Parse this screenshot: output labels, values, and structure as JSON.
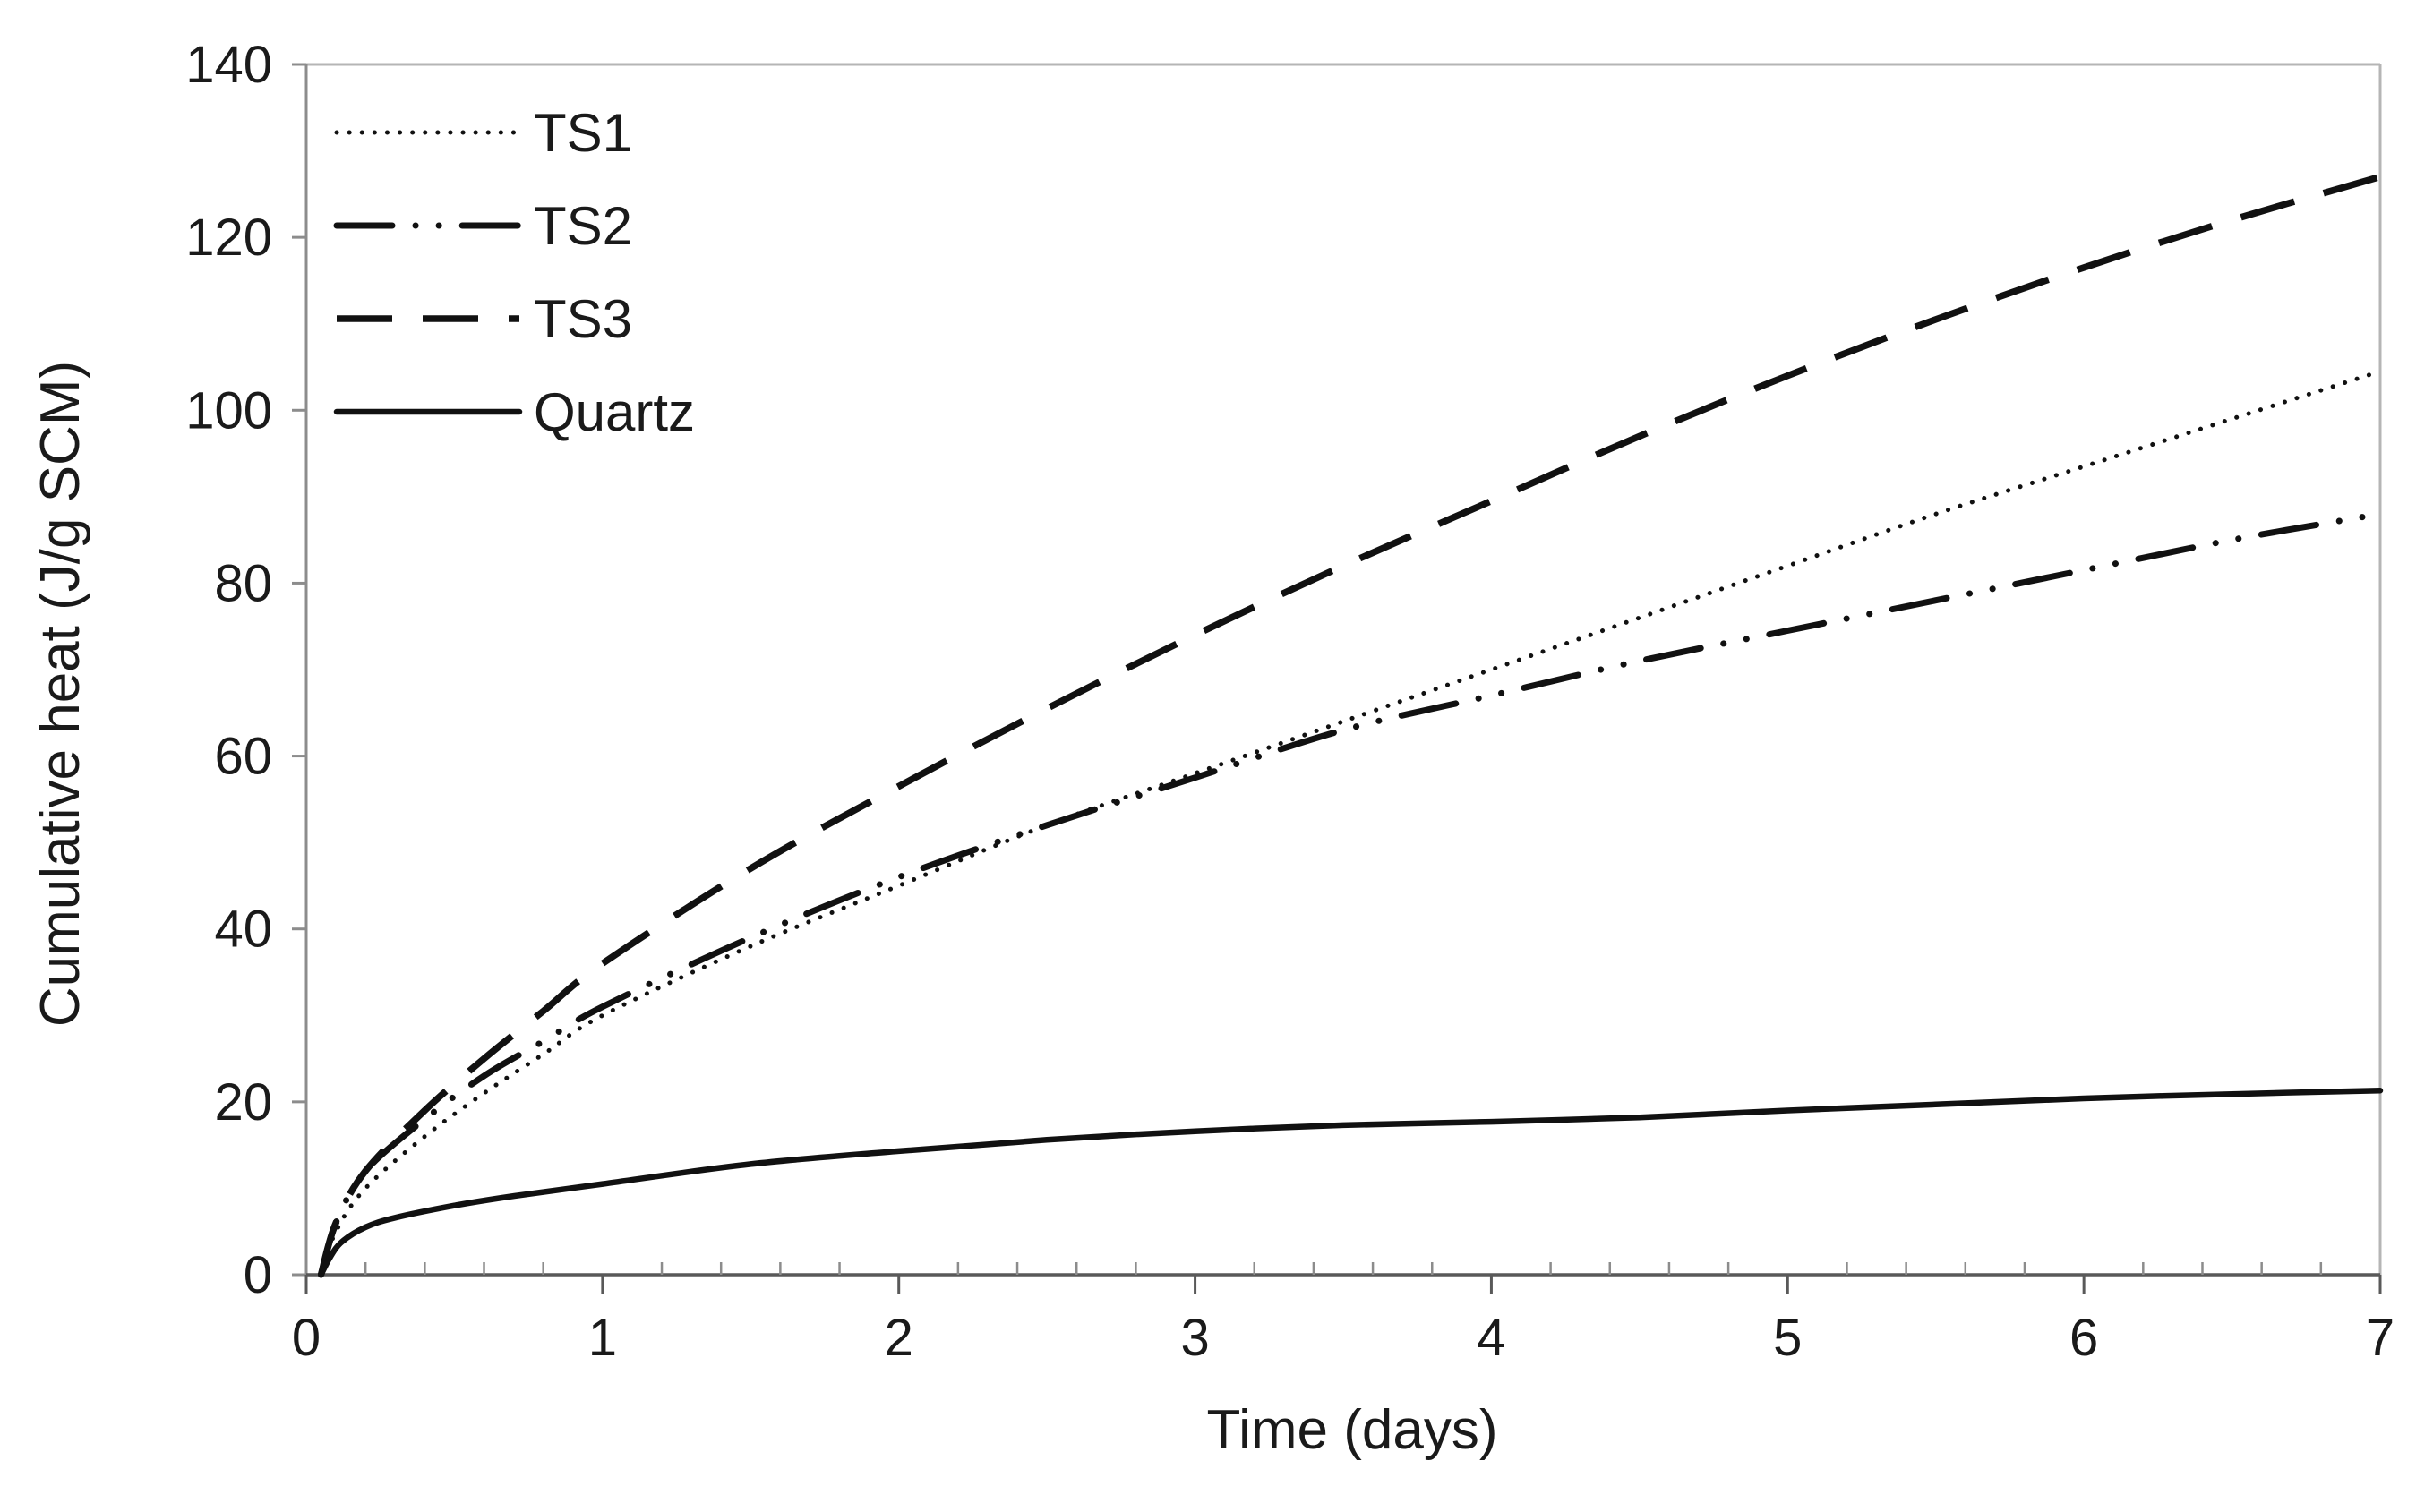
{
  "chart_data": {
    "type": "line",
    "title": "",
    "xlabel": "Time (days)",
    "ylabel": "Cumulative heat  (J/g SCM)",
    "xlim": [
      0,
      7
    ],
    "ylim": [
      0,
      140
    ],
    "xticks": [
      "0",
      "1",
      "2",
      "3",
      "4",
      "5",
      "6",
      "7"
    ],
    "yticks": [
      "0",
      "20",
      "40",
      "60",
      "80",
      "100",
      "120",
      "140"
    ],
    "x_minor_step": 0.2,
    "grid": false,
    "legend_position": "top-left",
    "series": [
      {
        "name": "TS1",
        "style": "dotted",
        "x": [
          0.05,
          0.1,
          0.2,
          0.4,
          0.6,
          0.8,
          1.0,
          1.5,
          2.0,
          2.5,
          3.0,
          3.5,
          4.0,
          4.5,
          5.0,
          5.5,
          6.0,
          6.5,
          7.0
        ],
        "y": [
          0,
          5,
          10,
          16,
          21,
          25.5,
          30,
          38,
          45,
          52,
          58,
          64,
          70,
          76,
          82,
          88,
          93.5,
          99,
          104.5
        ]
      },
      {
        "name": "TS2",
        "style": "dash-dot-dot",
        "x": [
          0.05,
          0.1,
          0.2,
          0.4,
          0.6,
          0.8,
          1.0,
          1.5,
          2.0,
          2.5,
          3.0,
          3.5,
          4.0,
          4.5,
          5.0,
          5.5,
          6.0,
          6.5,
          7.0
        ],
        "y": [
          0,
          6,
          12,
          18,
          23,
          27,
          31,
          39,
          46,
          52,
          57.5,
          63,
          67,
          71,
          74.5,
          78,
          81.5,
          85,
          88
        ]
      },
      {
        "name": "TS3",
        "style": "dashed",
        "x": [
          0.05,
          0.1,
          0.2,
          0.4,
          0.6,
          0.8,
          1.0,
          1.5,
          2.0,
          2.5,
          3.0,
          3.5,
          4.0,
          4.5,
          5.0,
          5.5,
          6.0,
          6.5,
          7.0
        ],
        "y": [
          0,
          6,
          12,
          19,
          25,
          30.5,
          36,
          47,
          56.5,
          65.5,
          74,
          82,
          89.5,
          97,
          104,
          110.5,
          116.5,
          122,
          127
        ]
      },
      {
        "name": "Quartz",
        "style": "solid",
        "x": [
          0.05,
          0.08,
          0.12,
          0.2,
          0.3,
          0.5,
          0.7,
          1.0,
          1.5,
          2.0,
          2.5,
          3.0,
          3.5,
          4.0,
          4.5,
          5.0,
          5.5,
          6.0,
          6.5,
          7.0
        ],
        "y": [
          0,
          2,
          3.8,
          5.5,
          6.6,
          8,
          9.1,
          10.5,
          12.8,
          14.3,
          15.6,
          16.6,
          17.3,
          17.7,
          18.2,
          19,
          19.7,
          20.4,
          20.9,
          21.3
        ]
      }
    ]
  }
}
